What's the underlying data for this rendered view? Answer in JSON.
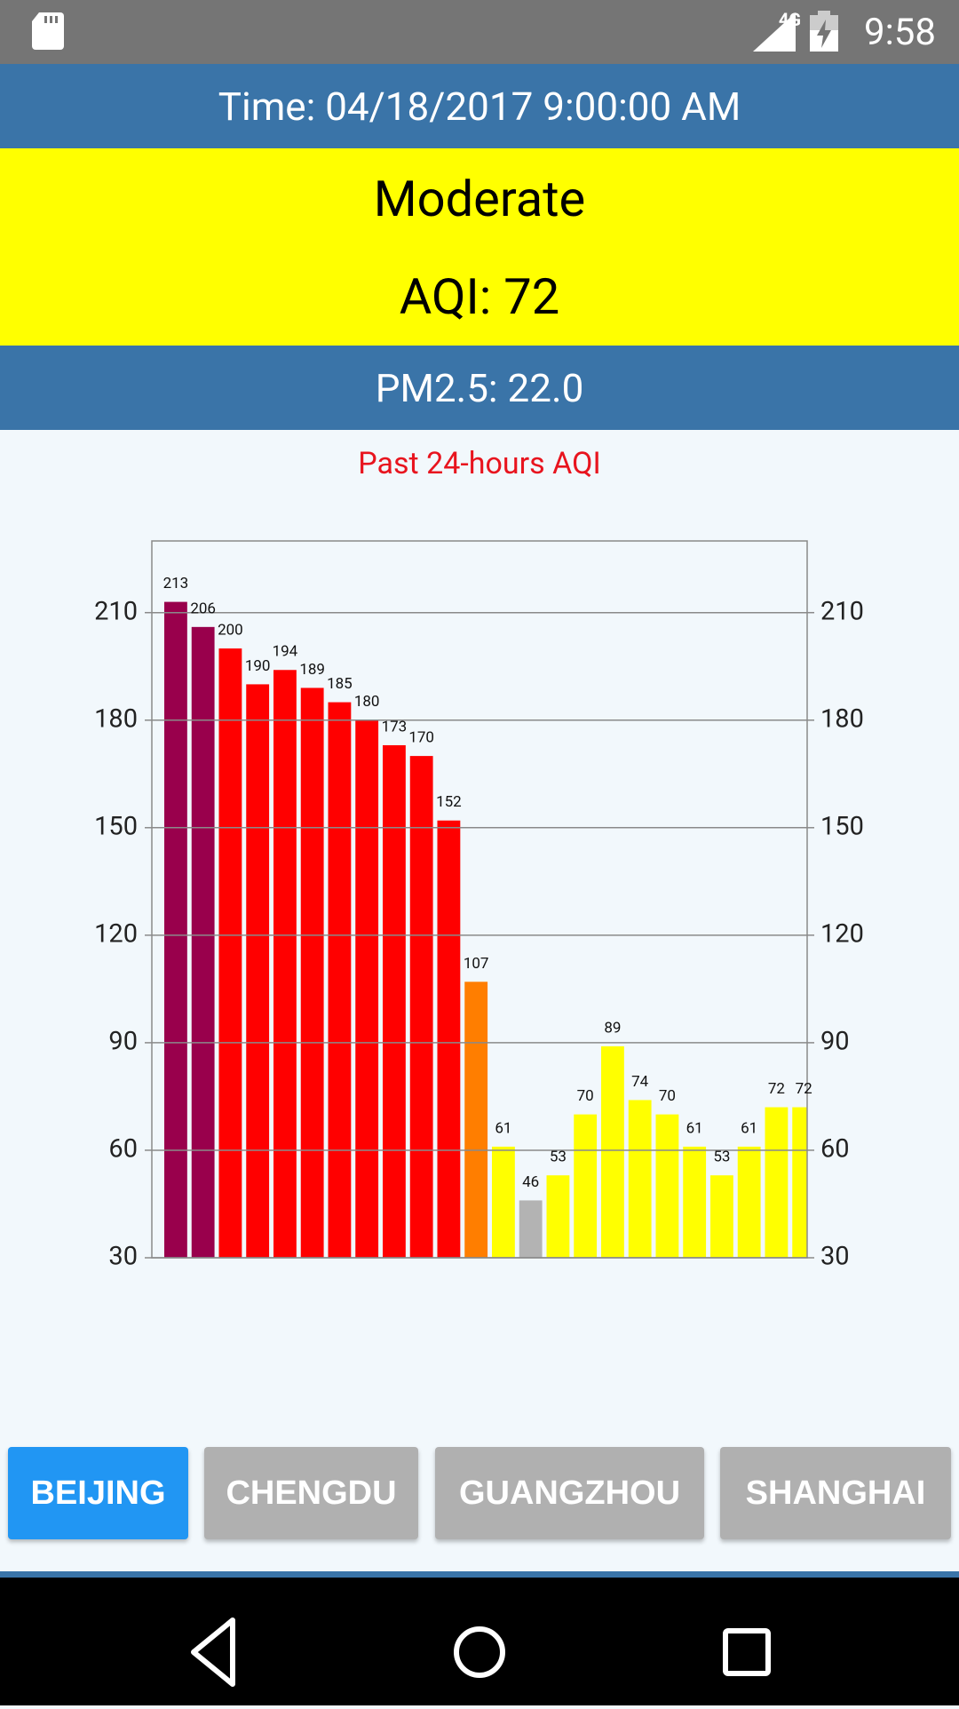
{
  "status_bar": {
    "network": "4G",
    "time": "9:58"
  },
  "header": {
    "time": "Time: 04/18/2017 9:00:00 AM",
    "level": "Moderate",
    "aqi": "AQI: 72",
    "pm25": "PM2.5: 22.0"
  },
  "chart_data": {
    "type": "bar",
    "title": "Past 24-hours AQI",
    "values": [
      213,
      206,
      200,
      190,
      194,
      189,
      185,
      180,
      173,
      170,
      152,
      107,
      61,
      46,
      53,
      70,
      89,
      74,
      70,
      61,
      53,
      61,
      72,
      72
    ],
    "colors": [
      "#99004c",
      "#99004c",
      "#ff0000",
      "#ff0000",
      "#ff0000",
      "#ff0000",
      "#ff0000",
      "#ff0000",
      "#ff0000",
      "#ff0000",
      "#ff0000",
      "#ff7e00",
      "#ffff00",
      "#b3b3b3",
      "#ffff00",
      "#ffff00",
      "#ffff00",
      "#ffff00",
      "#ffff00",
      "#ffff00",
      "#ffff00",
      "#ffff00",
      "#ffff00",
      "#ffff00"
    ],
    "ylim": [
      30,
      230
    ],
    "yticks": [
      30,
      60,
      90,
      120,
      150,
      180,
      210
    ],
    "y2lim": [
      30,
      230
    ],
    "y2ticks": [
      30,
      60,
      90,
      120,
      150,
      180,
      210
    ],
    "grid": true
  },
  "tabs": [
    {
      "label": "BEIJING",
      "active": true
    },
    {
      "label": "CHENGDU",
      "active": false
    },
    {
      "label": "GUANGZHOU",
      "active": false
    },
    {
      "label": "SHANGHAI",
      "active": false
    }
  ]
}
